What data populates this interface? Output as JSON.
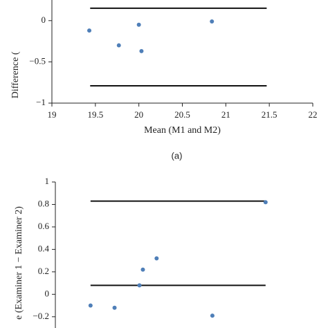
{
  "chart_data": [
    {
      "type": "scatter",
      "y_label": "Difference (",
      "x_label": "Mean (M1 and M2)",
      "caption": "(a)",
      "x": [
        19.43,
        19.77,
        20.0,
        20.03,
        20.84
      ],
      "values": [
        -0.12,
        -0.3,
        -0.05,
        -0.37,
        -0.01
      ],
      "color": "#4f7fb8",
      "hlines": [
        0.15,
        -0.79
      ],
      "hline_xlim": [
        19.44,
        21.47
      ],
      "xlim": [
        19,
        22
      ],
      "xticks": [
        19,
        19.5,
        20,
        20.5,
        21,
        21.5,
        22
      ],
      "ylim": [
        -1,
        0.25
      ],
      "yticks": [
        {
          "value": -1,
          "label": "−1"
        },
        {
          "value": -0.5,
          "label": "−0.5"
        },
        0
      ]
    },
    {
      "type": "scatter",
      "y_label": "e (Examiner 1 − Examiner 2)",
      "x": [
        19.41,
        19.69,
        19.98,
        20.02,
        20.18,
        20.83,
        21.45
      ],
      "values": [
        -0.1,
        -0.12,
        0.08,
        0.22,
        0.32,
        -0.19,
        0.82
      ],
      "color": "#4f7fb8",
      "hlines": [
        0.83,
        0.08
      ],
      "hline_xlim": [
        19.41,
        21.45
      ],
      "xlim": [
        19,
        22
      ],
      "ylim": [
        -0.3,
        1
      ],
      "yticks": [
        {
          "value": -0.2,
          "label": "−0.2"
        },
        0,
        0.2,
        0.4,
        0.6,
        0.8,
        1
      ]
    }
  ]
}
